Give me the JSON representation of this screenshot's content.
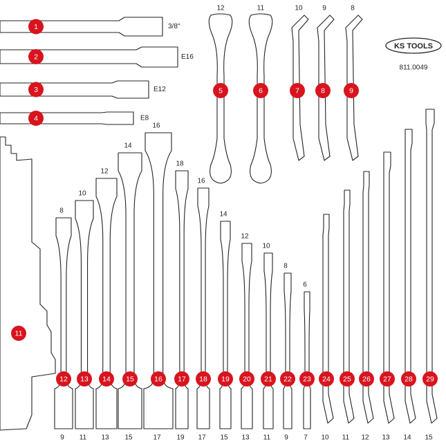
{
  "logo": {
    "brand": "KS TOOLS",
    "code": "811.0049"
  },
  "top_tools": [
    {
      "badge": "1",
      "label": "3/8''"
    },
    {
      "badge": "2",
      "label": "E16"
    },
    {
      "badge": "3",
      "label": "E12"
    },
    {
      "badge": "4",
      "label": "E8"
    }
  ],
  "top_wrenches": [
    {
      "badge": "5",
      "size": "12"
    },
    {
      "badge": "6",
      "size": "11"
    },
    {
      "badge": "7",
      "size": "10"
    },
    {
      "badge": "8",
      "size": "9"
    },
    {
      "badge": "9",
      "size": "8"
    }
  ],
  "holder": {
    "badge": "11"
  },
  "bottom_tools": [
    {
      "badge": "12",
      "top_size": "8",
      "bottom_size": "9"
    },
    {
      "badge": "13",
      "top_size": "10",
      "bottom_size": "11"
    },
    {
      "badge": "14",
      "top_size": "12",
      "bottom_size": "13"
    },
    {
      "badge": "15",
      "top_size": "14",
      "bottom_size": "15"
    },
    {
      "badge": "16",
      "top_size": "16",
      "bottom_size": "17"
    },
    {
      "badge": "17",
      "top_size": "18",
      "bottom_size": "19"
    },
    {
      "badge": "18",
      "top_size": "16",
      "bottom_size": "17"
    },
    {
      "badge": "19",
      "top_size": "14",
      "bottom_size": "15"
    },
    {
      "badge": "20",
      "top_size": "12",
      "bottom_size": "13"
    },
    {
      "badge": "21",
      "top_size": "10",
      "bottom_size": "11"
    },
    {
      "badge": "22",
      "top_size": "8",
      "bottom_size": "9"
    },
    {
      "badge": "23",
      "top_size": "6",
      "bottom_size": "7"
    },
    {
      "badge": "24",
      "bottom_size": "10"
    },
    {
      "badge": "25",
      "bottom_size": "11"
    },
    {
      "badge": "26",
      "bottom_size": "12"
    },
    {
      "badge": "27",
      "bottom_size": "13"
    },
    {
      "badge": "28",
      "bottom_size": "14"
    },
    {
      "badge": "29",
      "bottom_size": "15"
    }
  ]
}
